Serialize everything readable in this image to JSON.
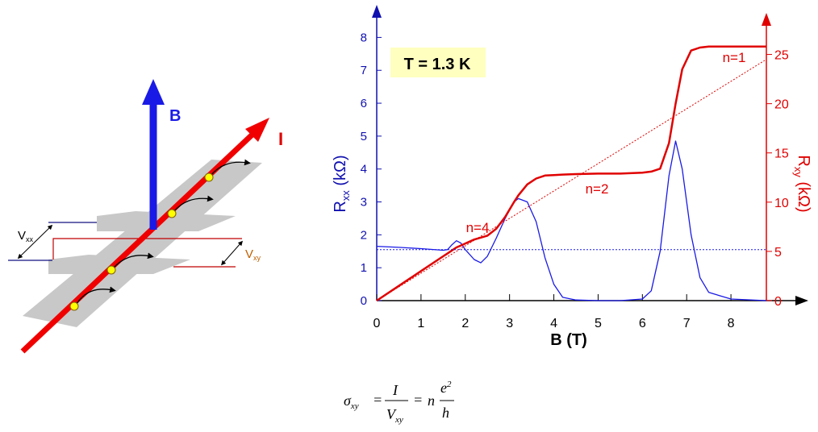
{
  "chart_data": {
    "type": "line",
    "xlabel": "B (T)",
    "ylabel": {
      "main": "R",
      "sub": "xx",
      "unit": " (kΩ)"
    },
    "y2label": {
      "main": "R",
      "sub": "xy",
      "unit": " (kΩ)"
    },
    "annotations": [
      "T = 1.3 K",
      "n=1",
      "n=2",
      "n=4"
    ],
    "xlim": [
      0,
      8.8
    ],
    "xticks": [
      0,
      1,
      2,
      3,
      4,
      5,
      6,
      7,
      8
    ],
    "ylim": [
      0,
      8.5
    ],
    "yticks": [
      0,
      1,
      2,
      3,
      4,
      5,
      6,
      7,
      8
    ],
    "y2lim": [
      0,
      28.4
    ],
    "y2ticks": [
      0,
      5,
      10,
      15,
      20,
      25
    ],
    "ycolor": "#1010b0",
    "y2color": "#e00000",
    "series": [
      {
        "color": "#1a1ae6",
        "width": 1.3,
        "x": [
          0,
          0.5,
          1,
          1.5,
          1.6,
          1.7,
          1.8,
          1.9,
          2,
          2.2,
          2.35,
          2.5,
          2.7,
          2.9,
          3.1,
          3.2,
          3.4,
          3.6,
          3.8,
          4,
          4.2,
          4.5,
          5,
          5.5,
          6,
          6.2,
          6.4,
          6.6,
          6.75,
          6.9,
          7.1,
          7.3,
          7.5,
          8,
          8.8
        ],
        "values": [
          1.65,
          1.62,
          1.58,
          1.53,
          1.55,
          1.7,
          1.82,
          1.75,
          1.55,
          1.25,
          1.15,
          1.35,
          1.9,
          2.5,
          3.0,
          3.1,
          3.0,
          2.4,
          1.3,
          0.5,
          0.1,
          0.02,
          0,
          0,
          0.05,
          0.3,
          1.5,
          3.8,
          4.85,
          4.0,
          2.0,
          0.7,
          0.25,
          0.05,
          0
        ]
      },
      {
        "color": "#e00000",
        "width": 2.5,
        "axis": "y2",
        "x": [
          0,
          0.5,
          1,
          1.5,
          1.6,
          1.7,
          1.8,
          1.9,
          2,
          2.2,
          2.35,
          2.5,
          2.7,
          2.9,
          3.1,
          3.2,
          3.4,
          3.6,
          3.8,
          4,
          4.2,
          4.5,
          5,
          5.5,
          6,
          6.2,
          6.4,
          6.6,
          6.75,
          6.9,
          7.1,
          7.3,
          7.5,
          8,
          8.8
        ],
        "values": [
          0,
          1.5,
          3,
          4.5,
          4.8,
          5.1,
          5.4,
          5.6,
          5.8,
          6.2,
          6.4,
          6.6,
          7.3,
          8.5,
          10,
          10.7,
          11.8,
          12.4,
          12.7,
          12.75,
          12.8,
          12.85,
          12.9,
          12.9,
          13.0,
          13.1,
          13.4,
          16,
          20,
          23.5,
          25.4,
          25.7,
          25.8,
          25.8,
          25.8
        ]
      },
      {
        "color": "#e00000",
        "width": 1,
        "dash": true,
        "axis": "y2",
        "x": [
          0,
          8.8
        ],
        "values": [
          0,
          24.5
        ]
      },
      {
        "color": "#1a1ae6",
        "width": 1,
        "dash": true,
        "x": [
          0,
          8.8
        ],
        "values": [
          1.55,
          1.55
        ]
      }
    ]
  },
  "diagram": {
    "b_label": "B",
    "i_label": "I",
    "vxx": {
      "main": "V",
      "sub": "xx"
    },
    "vxy": {
      "main": "V",
      "sub": "xy"
    }
  },
  "formula": {
    "sigma": "σ",
    "sigma_sub": "xy",
    "eq1": "=",
    "num1": "I",
    "den1": "V",
    "den1_sub": "xy",
    "eq2": "=",
    "n": "n",
    "num2": "e",
    "num2_sup": "2",
    "den2": "h"
  }
}
